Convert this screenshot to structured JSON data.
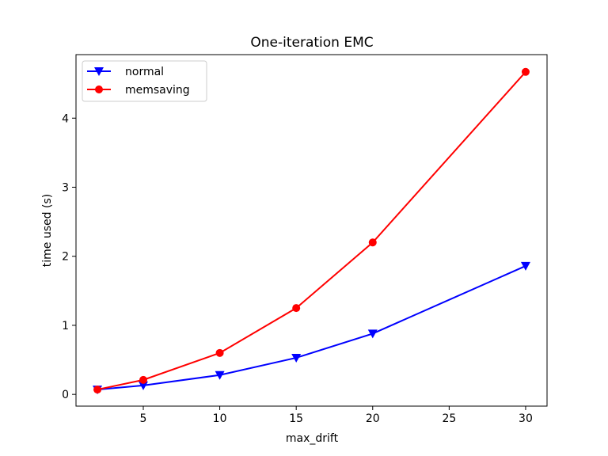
{
  "chart_data": {
    "type": "line",
    "title": "One-iteration EMC",
    "xlabel": "max_drift",
    "ylabel": "time used (s)",
    "xlim": [
      0.6,
      31.4
    ],
    "ylim": [
      -0.17,
      4.92
    ],
    "xticks": [
      5,
      10,
      15,
      20,
      25,
      30
    ],
    "yticks": [
      0,
      1,
      2,
      3,
      4
    ],
    "grid": false,
    "legend_position": "top-left",
    "x": [
      2,
      5,
      10,
      15,
      20,
      30
    ],
    "series": [
      {
        "name": "normal",
        "color": "#0000ff",
        "marker": "triangle-down",
        "values": [
          0.07,
          0.13,
          0.28,
          0.53,
          0.88,
          1.86
        ]
      },
      {
        "name": "memsaving",
        "color": "#ff0000",
        "marker": "circle",
        "values": [
          0.07,
          0.21,
          0.6,
          1.25,
          2.2,
          4.67
        ]
      }
    ]
  }
}
